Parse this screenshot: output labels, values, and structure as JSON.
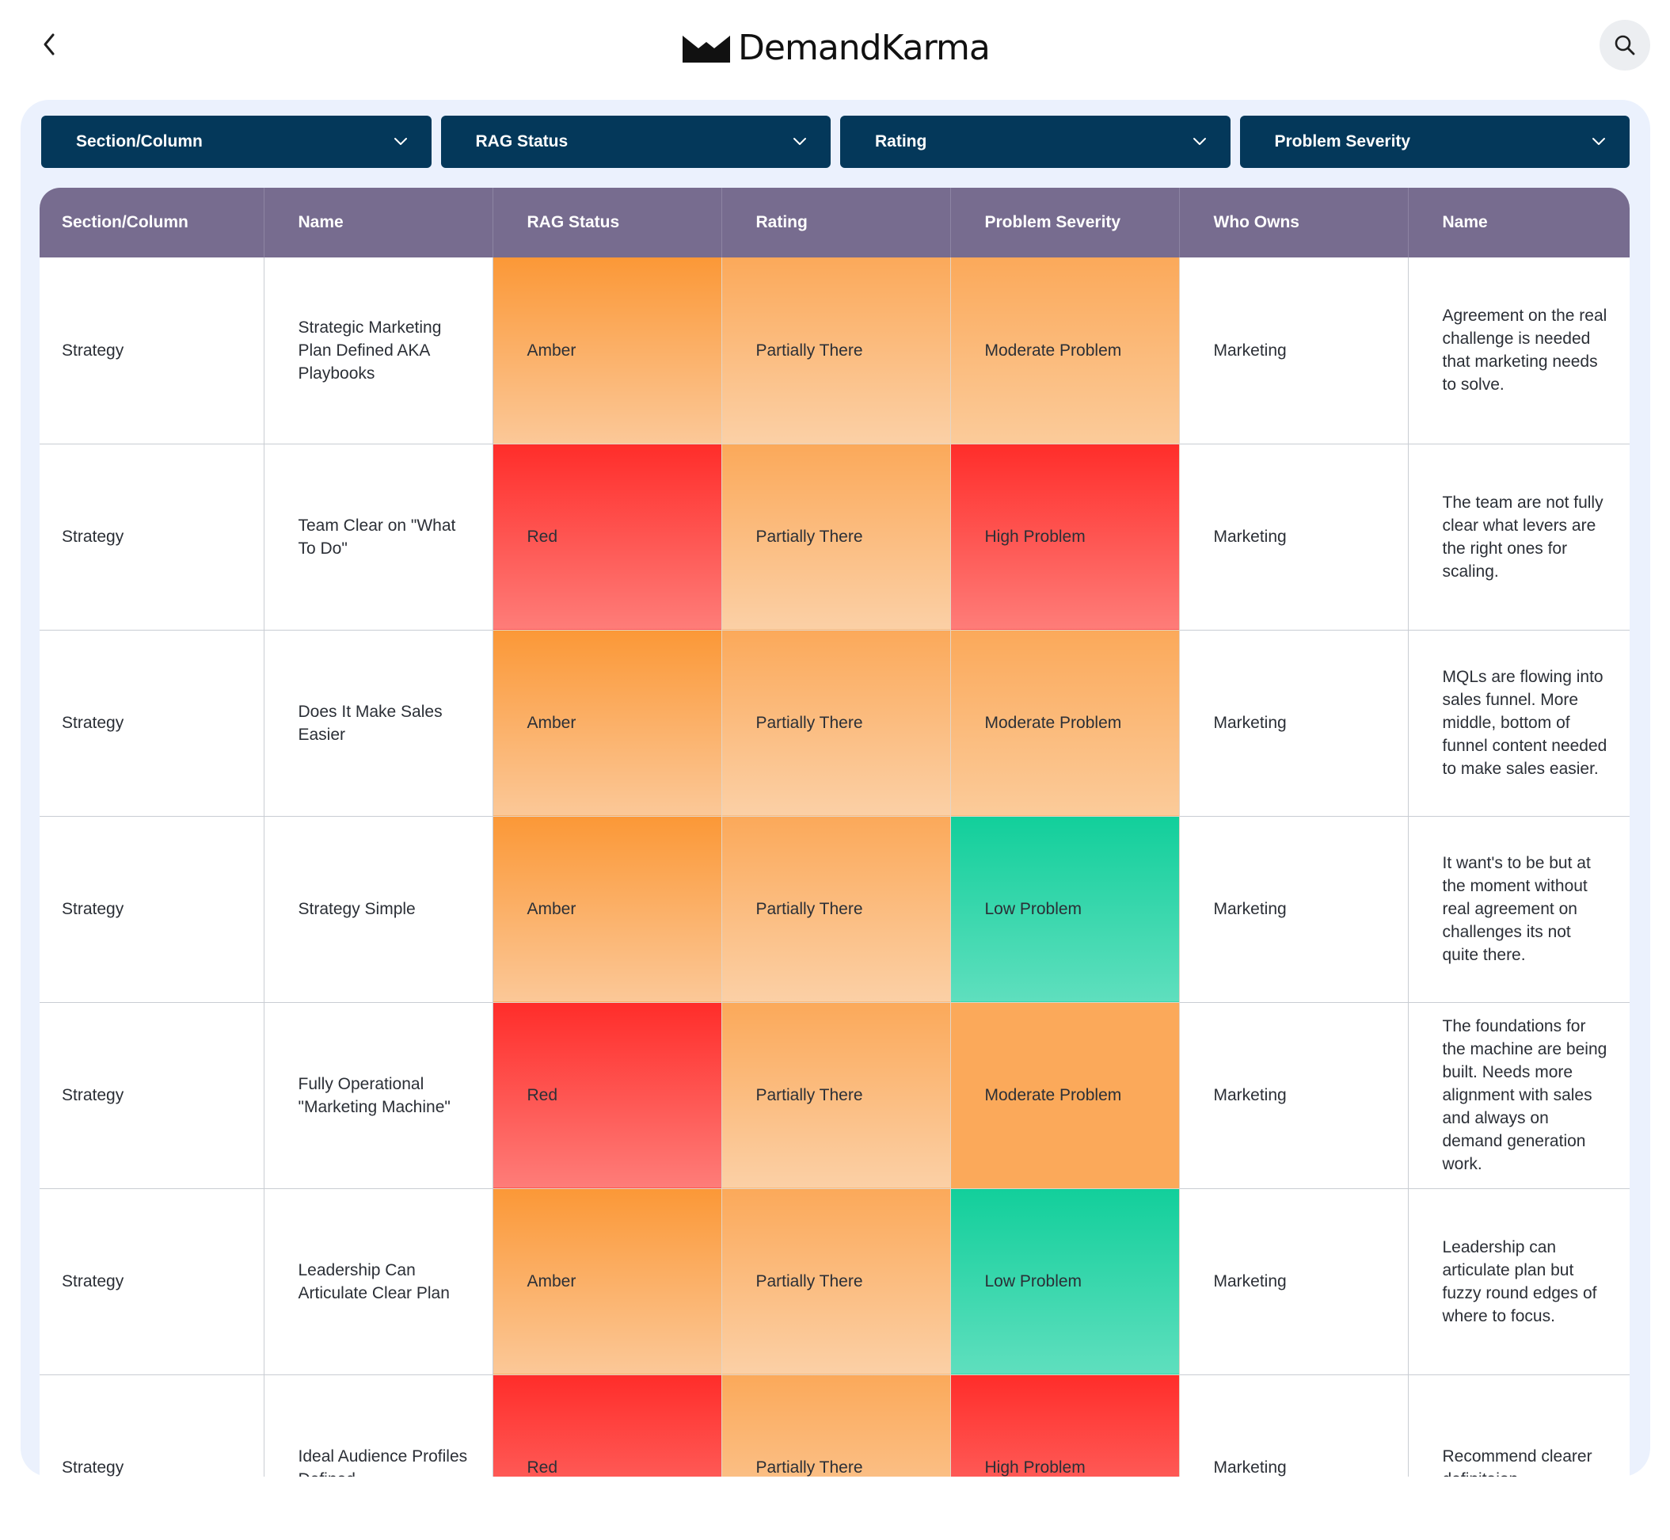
{
  "header": {
    "logo_text": "DemandKarma"
  },
  "filters": [
    {
      "label": "Section/Column"
    },
    {
      "label": "RAG Status"
    },
    {
      "label": "Rating"
    },
    {
      "label": "Problem Severity"
    }
  ],
  "table": {
    "columns": [
      "Section/Column",
      "Name",
      "RAG Status",
      "Rating",
      "Problem Severity",
      "Who Owns",
      "Name"
    ],
    "rows": [
      {
        "section": "Strategy",
        "name": "Strategic Marketing Plan Defined AKA Playbooks",
        "rag": "Amber",
        "rating": "Partially There",
        "severity": "Moderate Problem",
        "owner": "Marketing",
        "notes": "Agreement on the real challenge is needed that marketing needs to solve."
      },
      {
        "section": "Strategy",
        "name": "Team Clear on \"What To Do\"",
        "rag": "Red",
        "rating": "Partially There",
        "severity": "High Problem",
        "owner": "Marketing",
        "notes": "The team are not fully clear what levers are the right ones for scaling."
      },
      {
        "section": "Strategy",
        "name": "Does It Make Sales Easier",
        "rag": "Amber",
        "rating": "Partially There",
        "severity": "Moderate Problem",
        "owner": "Marketing",
        "notes": "MQLs are flowing into sales funnel. More middle, bottom of funnel content needed to make sales easier."
      },
      {
        "section": "Strategy",
        "name": "Strategy Simple",
        "rag": "Amber",
        "rating": "Partially There",
        "severity": "Low Problem",
        "owner": "Marketing",
        "notes": "It want's to be but at the moment without real agreement on challenges its not quite there."
      },
      {
        "section": "Strategy",
        "name": "Fully Operational \"Marketing Machine\"",
        "rag": "Red",
        "rating": "Partially There",
        "severity": "Moderate Problem",
        "owner": "Marketing",
        "notes": "The foundations for the machine are being built. Needs more alignment with sales and always on demand generation work."
      },
      {
        "section": "Strategy",
        "name": "Leadership Can Articulate Clear Plan",
        "rag": "Amber",
        "rating": "Partially There",
        "severity": "Low Problem",
        "owner": "Marketing",
        "notes": "Leadership can articulate plan but fuzzy round edges of where to focus."
      },
      {
        "section": "Strategy",
        "name": "Ideal Audience Profiles Defined",
        "rag": "Red",
        "rating": "Partially There",
        "severity": "High Problem",
        "owner": "Marketing",
        "notes": "Recommend clearer definitaion"
      }
    ]
  },
  "colors": {
    "filter_bg": "#04385a",
    "table_header_bg": "#776c8f",
    "panel_bg": "#ebf1fd",
    "amber": "#fb9837",
    "red": "#ff2d2a",
    "green": "#12cf9b"
  }
}
